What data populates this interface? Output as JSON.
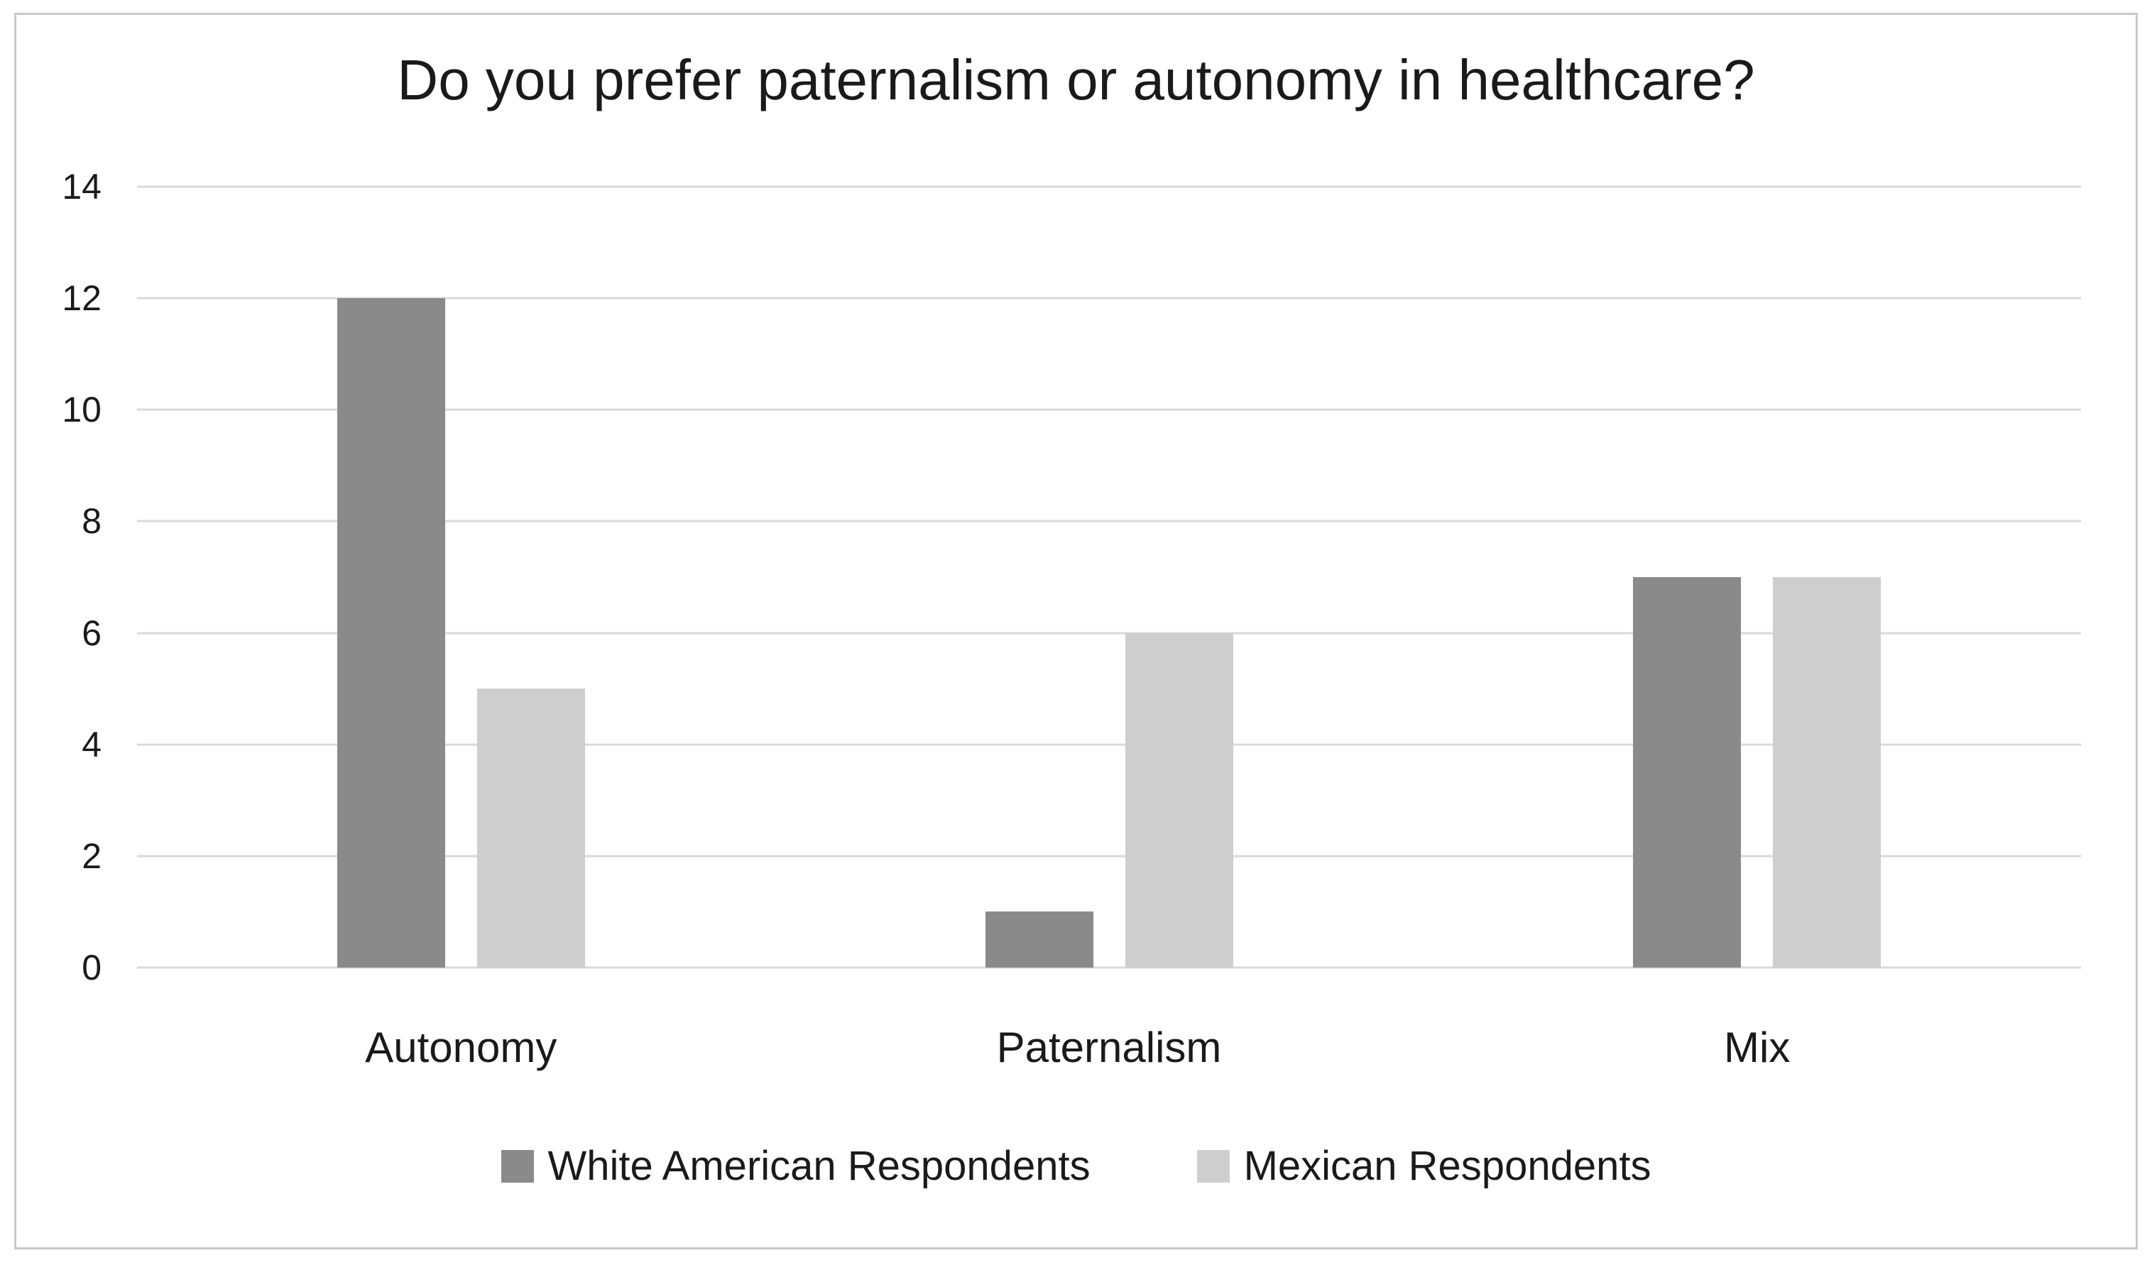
{
  "chart_data": {
    "type": "bar",
    "title": "Do you prefer paternalism or autonomy in healthcare?",
    "categories": [
      "Autonomy",
      "Paternalism",
      "Mix"
    ],
    "series": [
      {
        "name": "White American Respondents",
        "color": "#8a8a8a",
        "values": [
          12,
          1,
          7
        ]
      },
      {
        "name": "Mexican Respondents",
        "color": "#cecece",
        "values": [
          5,
          6,
          7
        ]
      }
    ],
    "xlabel": "",
    "ylabel": "",
    "ylim": [
      0,
      14
    ],
    "yticks": [
      0,
      2,
      4,
      6,
      8,
      10,
      12,
      14
    ],
    "grid": true,
    "legend_position": "bottom",
    "colors": {
      "gridline": "#d9d9d9",
      "frame_border": "#c9c9c9",
      "text": "#1a1a1a",
      "background": "#ffffff"
    }
  }
}
